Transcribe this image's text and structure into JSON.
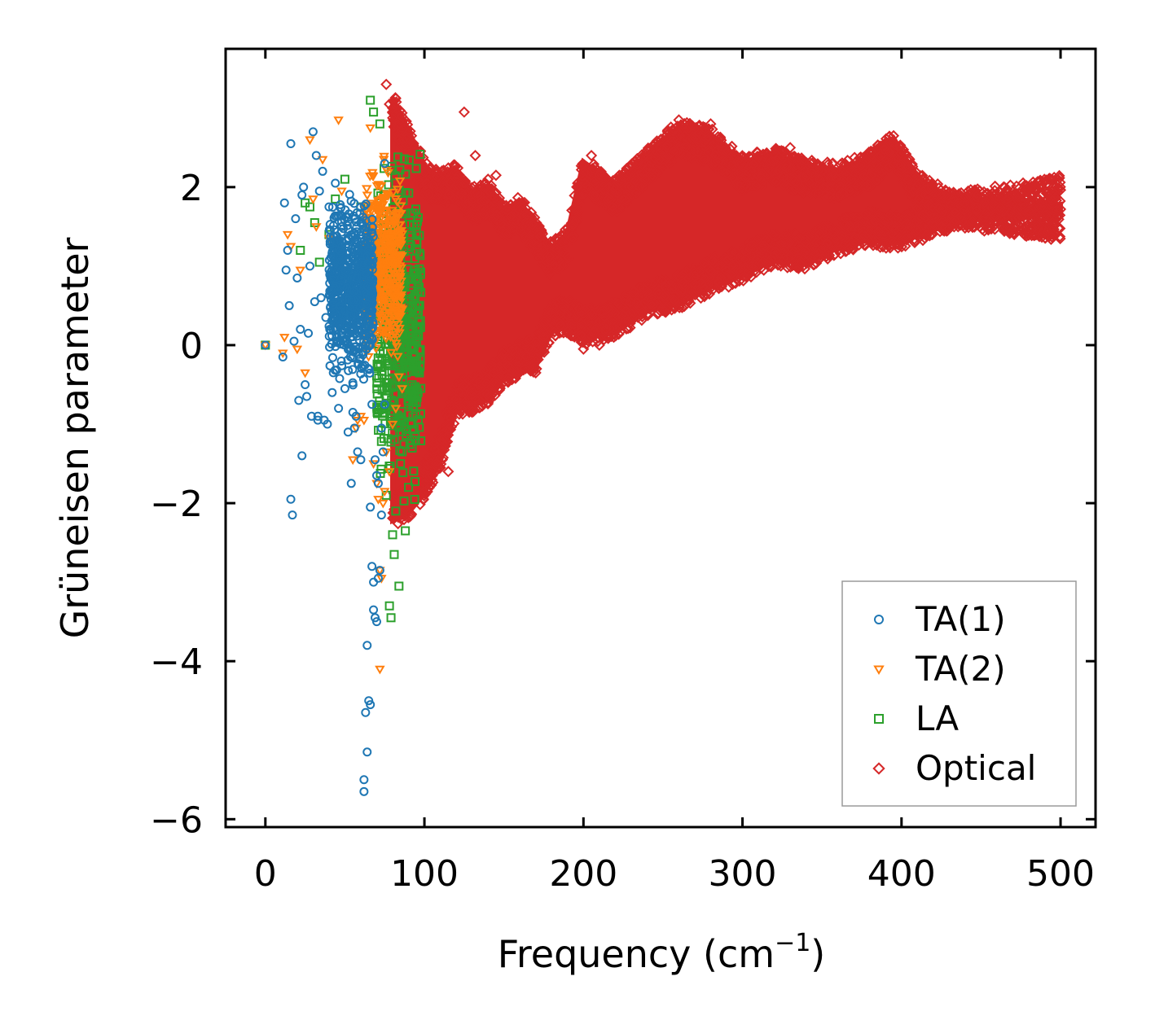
{
  "chart_data": {
    "type": "scatter",
    "title": "",
    "xlabel": "Frequency (cm",
    "xlabel_sup": "−1",
    "xlabel_close": ")",
    "ylabel": "Grüneisen parameter",
    "xlim": [
      -25,
      522
    ],
    "ylim": [
      -6.1,
      3.75
    ],
    "xticks": [
      0,
      100,
      200,
      300,
      400,
      500
    ],
    "xtick_labels": [
      "0",
      "100",
      "200",
      "300",
      "400",
      "500"
    ],
    "yticks": [
      -6,
      -4,
      -2,
      0,
      2
    ],
    "ytick_labels": [
      "−6",
      "−4",
      "−2",
      "0",
      "2"
    ],
    "grid": false,
    "legend_position": "bottom-right",
    "series": [
      {
        "name": "TA(1)",
        "marker": "circle",
        "color": "#1f77b4",
        "dense_cloud": {
          "xmin": 40,
          "xmax": 68,
          "ymin": -0.7,
          "ymax": 2.1,
          "count": 700
        },
        "points": [
          [
            0,
            0
          ],
          [
            11,
            -0.15
          ],
          [
            12,
            1.8
          ],
          [
            13,
            0.95
          ],
          [
            14,
            1.2
          ],
          [
            15,
            0.5
          ],
          [
            16,
            2.55
          ],
          [
            16,
            -1.95
          ],
          [
            17,
            -2.15
          ],
          [
            18,
            0.05
          ],
          [
            19,
            1.6
          ],
          [
            20,
            0.85
          ],
          [
            21,
            -0.7
          ],
          [
            22,
            0.2
          ],
          [
            23,
            1.9
          ],
          [
            23,
            -1.4
          ],
          [
            24,
            2.0
          ],
          [
            25,
            -0.5
          ],
          [
            26,
            -0.65
          ],
          [
            27,
            0.15
          ],
          [
            28,
            1.0
          ],
          [
            29,
            -0.9
          ],
          [
            30,
            2.7
          ],
          [
            31,
            0.55
          ],
          [
            32,
            2.4
          ],
          [
            33,
            -0.95
          ],
          [
            33,
            -0.9
          ],
          [
            34,
            1.95
          ],
          [
            35,
            0.6
          ],
          [
            36,
            2.2
          ],
          [
            37,
            -0.95
          ],
          [
            38,
            0.35
          ],
          [
            39,
            -1.0
          ],
          [
            40,
            1.75
          ],
          [
            42,
            -0.6
          ],
          [
            44,
            2.05
          ],
          [
            46,
            -0.8
          ],
          [
            48,
            1.5
          ],
          [
            50,
            -0.55
          ],
          [
            52,
            -1.1
          ],
          [
            54,
            -1.75
          ],
          [
            55,
            -0.85
          ],
          [
            56,
            -1.05
          ],
          [
            57,
            -0.9
          ],
          [
            58,
            -1.35
          ],
          [
            60,
            -1.45
          ],
          [
            62,
            -5.5
          ],
          [
            62,
            -5.65
          ],
          [
            63,
            -4.65
          ],
          [
            64,
            -5.15
          ],
          [
            64,
            -3.8
          ],
          [
            65,
            -4.5
          ],
          [
            66,
            -4.55
          ],
          [
            66,
            -2.05
          ],
          [
            67,
            -2.8
          ],
          [
            67,
            -0.75
          ],
          [
            68,
            -3.35
          ],
          [
            68,
            -3.0
          ],
          [
            69,
            -3.45
          ],
          [
            69,
            -1.45
          ],
          [
            70,
            -1.65
          ],
          [
            70,
            -3.5
          ],
          [
            71,
            -2.95
          ],
          [
            71,
            -1.75
          ],
          [
            72,
            -2.85
          ],
          [
            73,
            -2.15
          ],
          [
            73,
            -1.05
          ],
          [
            74,
            -1.35
          ],
          [
            75,
            -0.75
          ],
          [
            75,
            2.3
          ]
        ]
      },
      {
        "name": "TA(2)",
        "marker": "triangle-down",
        "color": "#ff7f0e",
        "dense_cloud": {
          "xmin": 62,
          "xmax": 86,
          "ymin": -0.6,
          "ymax": 2.6,
          "count": 500
        },
        "points": [
          [
            0,
            0
          ],
          [
            11,
            -0.1
          ],
          [
            12,
            0.1
          ],
          [
            14,
            1.4
          ],
          [
            16,
            1.25
          ],
          [
            20,
            -0.05
          ],
          [
            22,
            0.95
          ],
          [
            25,
            -0.35
          ],
          [
            28,
            2.6
          ],
          [
            30,
            1.85
          ],
          [
            32,
            1.5
          ],
          [
            36,
            2.35
          ],
          [
            40,
            1.35
          ],
          [
            46,
            2.85
          ],
          [
            48,
            1.95
          ],
          [
            52,
            0.65
          ],
          [
            55,
            -1.45
          ],
          [
            57,
            -1.05
          ],
          [
            58,
            -0.95
          ],
          [
            60,
            -0.9
          ],
          [
            62,
            -0.95
          ],
          [
            66,
            2.75
          ],
          [
            68,
            -1.5
          ],
          [
            70,
            -1.75
          ],
          [
            71,
            -1.95
          ],
          [
            72,
            -2.85
          ],
          [
            72,
            -4.1
          ],
          [
            73,
            -2.95
          ],
          [
            74,
            -2.0
          ],
          [
            75,
            -1.85
          ],
          [
            76,
            -1.35
          ],
          [
            78,
            -1.6
          ],
          [
            80,
            -1.0
          ],
          [
            82,
            -0.8
          ],
          [
            84,
            -0.4
          ],
          [
            86,
            -0.55
          ]
        ]
      },
      {
        "name": "LA",
        "marker": "square",
        "color": "#2ca02c",
        "dense_cloud": {
          "xmin": 70,
          "xmax": 98,
          "ymin": -2.3,
          "ymax": 2.9,
          "count": 500
        },
        "points": [
          [
            0,
            0
          ],
          [
            22,
            1.2
          ],
          [
            25,
            1.8
          ],
          [
            28,
            1.75
          ],
          [
            31,
            1.55
          ],
          [
            34,
            1.05
          ],
          [
            40,
            1.4
          ],
          [
            44,
            1.85
          ],
          [
            50,
            2.1
          ],
          [
            60,
            1.75
          ],
          [
            66,
            3.1
          ],
          [
            68,
            2.95
          ],
          [
            72,
            2.8
          ],
          [
            76,
            -1.9
          ],
          [
            78,
            -3.3
          ],
          [
            79,
            -3.45
          ],
          [
            80,
            -2.4
          ],
          [
            81,
            -2.65
          ],
          [
            82,
            -2.1
          ],
          [
            84,
            -3.05
          ],
          [
            85,
            -1.5
          ],
          [
            86,
            -1.35
          ],
          [
            88,
            -2.35
          ],
          [
            90,
            -1.8
          ],
          [
            92,
            -1.0
          ],
          [
            94,
            -0.65
          ],
          [
            96,
            -0.6
          ]
        ]
      },
      {
        "name": "Optical",
        "marker": "diamond",
        "color": "#d62728",
        "envelope": {
          "x": [
            80,
            90,
            100,
            110,
            120,
            130,
            140,
            150,
            160,
            170,
            180,
            190,
            200,
            220,
            240,
            260,
            280,
            300,
            320,
            340,
            360,
            380,
            395,
            410,
            430,
            450,
            470,
            490,
            500
          ],
          "upper": [
            3.2,
            2.8,
            2.35,
            2.2,
            2.3,
            2.0,
            2.1,
            1.8,
            1.9,
            1.6,
            1.3,
            1.5,
            2.4,
            2.1,
            2.5,
            2.85,
            2.75,
            2.4,
            2.5,
            2.35,
            2.3,
            2.45,
            2.7,
            2.2,
            1.95,
            1.9,
            1.85,
            1.8,
            1.75
          ],
          "lower": [
            -2.3,
            -2.2,
            -1.95,
            -1.55,
            -0.9,
            -0.85,
            -0.75,
            -0.5,
            -0.4,
            -0.35,
            0.1,
            0.15,
            0.0,
            0.1,
            0.35,
            0.45,
            0.65,
            0.8,
            1.0,
            0.95,
            1.15,
            1.25,
            1.2,
            1.3,
            1.45,
            1.55,
            1.6,
            1.65,
            1.7
          ],
          "count": 4200
        },
        "points": [
          [
            76,
            3.3
          ],
          [
            78,
            3.05
          ],
          [
            80,
            3.0
          ],
          [
            84,
            2.6
          ],
          [
            125,
            2.95
          ],
          [
            132,
            2.4
          ],
          [
            140,
            2.1
          ],
          [
            145,
            2.15
          ],
          [
            260,
            2.85
          ],
          [
            100,
            -1.75
          ],
          [
            105,
            -1.65
          ],
          [
            110,
            -1.55
          ],
          [
            115,
            -1.6
          ],
          [
            170,
            -0.35
          ],
          [
            200,
            -0.05
          ],
          [
            210,
            0.0
          ],
          [
            205,
            2.4
          ],
          [
            280,
            2.8
          ],
          [
            330,
            2.5
          ],
          [
            395,
            2.65
          ],
          [
            480,
            1.7
          ],
          [
            500,
            1.72
          ]
        ]
      }
    ]
  }
}
